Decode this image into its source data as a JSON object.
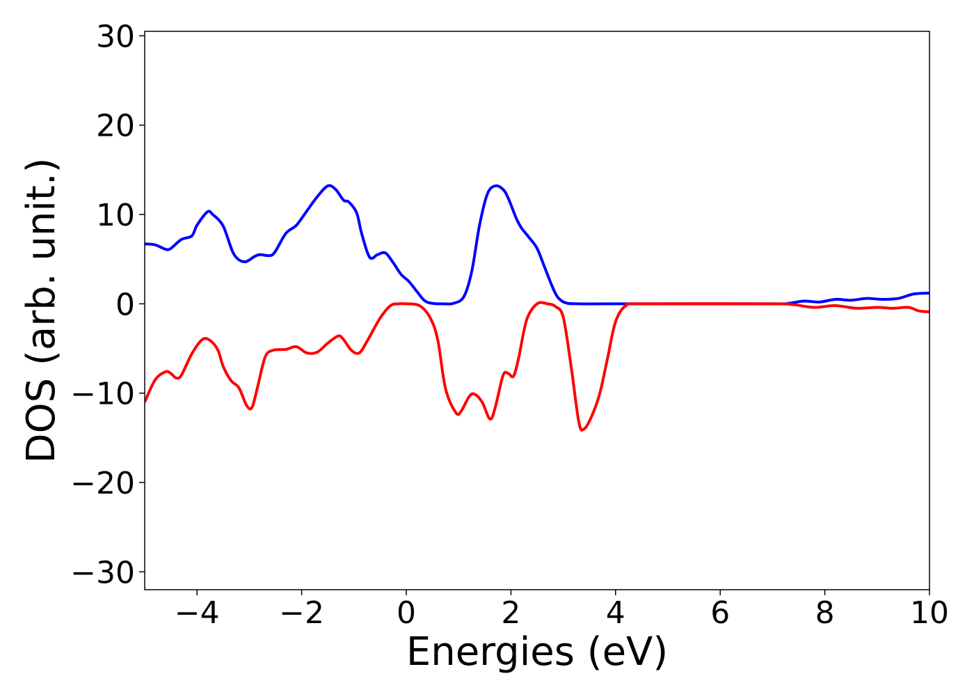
{
  "chart_data": {
    "type": "line",
    "title": "",
    "xlabel": "Energies (eV)",
    "ylabel": "DOS (arb. unit.)",
    "xlim": [
      -5,
      10
    ],
    "ylim": [
      -32,
      30.5
    ],
    "xticks": [
      -4,
      -2,
      0,
      2,
      4,
      6,
      8,
      10
    ],
    "yticks": [
      -30,
      -20,
      -10,
      0,
      10,
      20,
      30
    ],
    "xtick_labels": [
      "−4",
      "−2",
      "0",
      "2",
      "4",
      "6",
      "8",
      "10"
    ],
    "ytick_labels": [
      "−30",
      "−20",
      "−10",
      "0",
      "10",
      "20",
      "30"
    ],
    "grid": false,
    "legend": "none",
    "series": [
      {
        "color": "#0000ff",
        "x": [
          -5.0,
          -4.8,
          -4.6,
          -4.5,
          -4.3,
          -4.1,
          -4.0,
          -3.8,
          -3.7,
          -3.5,
          -3.3,
          -3.1,
          -2.9,
          -2.8,
          -2.6,
          -2.5,
          -2.3,
          -2.1,
          -1.9,
          -1.7,
          -1.5,
          -1.35,
          -1.2,
          -1.1,
          -0.95,
          -0.85,
          -0.7,
          -0.55,
          -0.4,
          -0.25,
          -0.1,
          0.05,
          0.2,
          0.35,
          0.5,
          0.7,
          0.9,
          1.1,
          1.25,
          1.4,
          1.55,
          1.7,
          1.85,
          1.95,
          2.1,
          2.2,
          2.35,
          2.5,
          2.65,
          2.8,
          2.9,
          3.05,
          3.3,
          4.0,
          7.0,
          7.3,
          7.6,
          7.9,
          8.2,
          8.5,
          8.8,
          9.1,
          9.4,
          9.7,
          10.0
        ],
        "y": [
          6.7,
          6.6,
          6.1,
          6.2,
          7.2,
          7.6,
          8.8,
          10.3,
          10.0,
          8.7,
          5.6,
          4.7,
          5.3,
          5.5,
          5.4,
          5.9,
          7.9,
          8.8,
          10.4,
          12.0,
          13.2,
          12.8,
          11.6,
          11.4,
          10.2,
          7.8,
          5.2,
          5.5,
          5.7,
          4.6,
          3.3,
          2.5,
          1.4,
          0.35,
          0.05,
          0.0,
          0.05,
          0.8,
          3.6,
          8.8,
          12.3,
          13.2,
          12.8,
          11.8,
          9.6,
          8.5,
          7.4,
          6.2,
          4.0,
          1.8,
          0.7,
          0.1,
          0.0,
          0.0,
          0.0,
          0.05,
          0.3,
          0.2,
          0.5,
          0.4,
          0.6,
          0.5,
          0.6,
          1.1,
          1.2
        ]
      },
      {
        "color": "#ff0000",
        "x": [
          -5.0,
          -4.8,
          -4.6,
          -4.5,
          -4.4,
          -4.3,
          -4.1,
          -3.9,
          -3.75,
          -3.6,
          -3.5,
          -3.35,
          -3.2,
          -3.05,
          -2.95,
          -2.85,
          -2.7,
          -2.55,
          -2.3,
          -2.1,
          -1.9,
          -1.7,
          -1.5,
          -1.3,
          -1.2,
          -1.05,
          -0.9,
          -0.75,
          -0.5,
          -0.3,
          -0.15,
          0.0,
          0.25,
          0.45,
          0.6,
          0.75,
          0.95,
          1.05,
          1.2,
          1.3,
          1.45,
          1.6,
          1.7,
          1.85,
          1.95,
          2.05,
          2.15,
          2.3,
          2.5,
          2.7,
          2.85,
          3.0,
          3.15,
          3.3,
          3.4,
          3.55,
          3.7,
          3.85,
          4.0,
          4.2,
          4.5,
          7.0,
          7.4,
          7.8,
          8.2,
          8.6,
          9.0,
          9.3,
          9.6,
          9.8,
          10.0
        ],
        "y": [
          -11.0,
          -8.5,
          -7.6,
          -7.8,
          -8.3,
          -8.0,
          -5.6,
          -4.0,
          -4.1,
          -5.2,
          -7.0,
          -8.6,
          -9.4,
          -11.4,
          -11.6,
          -9.5,
          -6.0,
          -5.2,
          -5.1,
          -4.8,
          -5.5,
          -5.4,
          -4.4,
          -3.6,
          -4.0,
          -5.2,
          -5.5,
          -4.2,
          -1.6,
          -0.2,
          0.0,
          0.0,
          -0.2,
          -1.5,
          -4.0,
          -9.5,
          -12.2,
          -12.0,
          -10.4,
          -10.1,
          -11.0,
          -12.9,
          -11.6,
          -8.0,
          -7.8,
          -8.1,
          -6.0,
          -1.8,
          0.0,
          0.0,
          -0.3,
          -1.5,
          -7.0,
          -13.3,
          -14.0,
          -12.5,
          -10.0,
          -6.0,
          -2.0,
          -0.2,
          0.0,
          0.0,
          -0.1,
          -0.4,
          -0.2,
          -0.5,
          -0.4,
          -0.5,
          -0.4,
          -0.8,
          -0.9
        ]
      }
    ]
  }
}
